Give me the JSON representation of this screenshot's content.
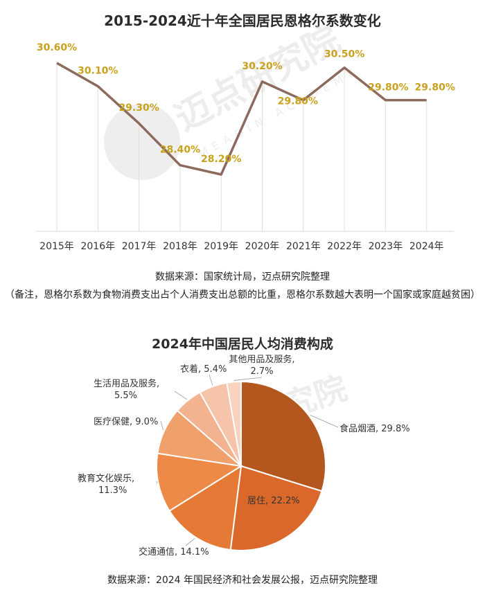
{
  "source_line": "数据来源：国家统计局，迈点研究院整理",
  "note_line": "（备注，恩格尔系数为食物消费支出占个人消费支出总额的比重，恩格尔系数越大表明一个国家或家庭越贫困）",
  "pie_source": "数据来源：2024 年国民经济和社会发展公报，迈点研究院整理",
  "watermark": {
    "text": "迈点研究院",
    "sub": "MEADIN ACADEMY"
  },
  "chart_data": [
    {
      "type": "line",
      "title": "2015-2024近十年全国居民恩格尔系数变化",
      "categories": [
        "2015年",
        "2016年",
        "2017年",
        "2018年",
        "2019年",
        "2020年",
        "2021年",
        "2022年",
        "2023年",
        "2024年"
      ],
      "values": [
        30.6,
        30.1,
        29.3,
        28.4,
        28.2,
        30.2,
        29.8,
        30.5,
        29.8,
        29.8
      ],
      "labels": [
        "30.60%",
        "30.10%",
        "29.30%",
        "28.40%",
        "28.20%",
        "30.20%",
        "29.80%",
        "30.50%",
        "29.80%",
        "29.80%"
      ],
      "line_color": "#8c6b5e",
      "label_color": "#c9a21d"
    },
    {
      "type": "pie",
      "title": "2024年中国居民人均消费构成",
      "slices": [
        {
          "name": "食品烟酒",
          "value": 29.8,
          "label": "食品烟酒, 29.8%",
          "color": "#b3571f"
        },
        {
          "name": "居住",
          "value": 22.2,
          "label": "居住, 22.2%",
          "color": "#d9682a"
        },
        {
          "name": "交通通信",
          "value": 14.1,
          "label": "交通通信, 14.1%",
          "color": "#e47a36"
        },
        {
          "name": "教育文化娱乐",
          "value": 11.3,
          "label": "教育文化娱乐,\n11.3%",
          "color": "#ed8a47"
        },
        {
          "name": "医疗保健",
          "value": 9.0,
          "label": "医疗保健, 9.0%",
          "color": "#f0a06b"
        },
        {
          "name": "生活用品及服务",
          "value": 5.5,
          "label": "生活用品及服务,\n5.5%",
          "color": "#f3b390"
        },
        {
          "name": "衣着",
          "value": 5.4,
          "label": "衣着, 5.4%",
          "color": "#f5c4aa"
        },
        {
          "name": "其他用品及服务",
          "value": 2.7,
          "label": "其他用品及服务,\n2.7%",
          "color": "#f7d3c0"
        }
      ]
    }
  ]
}
